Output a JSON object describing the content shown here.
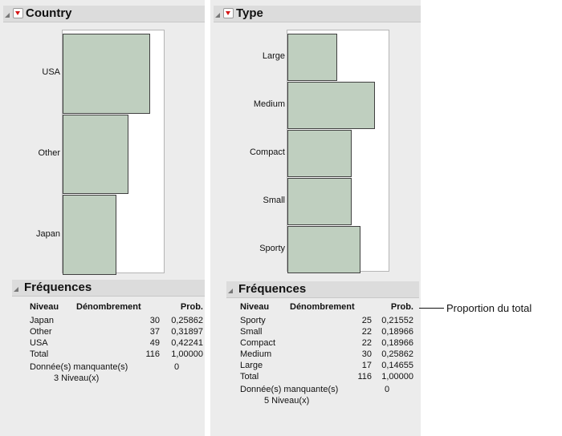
{
  "country": {
    "title": "Country",
    "frequencies_title": "Fréquences",
    "headers": [
      "Niveau",
      "Dénombrement",
      "Prob."
    ],
    "rows": [
      {
        "level": "Japan",
        "count": "30",
        "prob": "0,25862"
      },
      {
        "level": "Other",
        "count": "37",
        "prob": "0,31897"
      },
      {
        "level": "USA",
        "count": "49",
        "prob": "0,42241"
      },
      {
        "level": "Total",
        "count": "116",
        "prob": "1,00000"
      }
    ],
    "missing_label": "Donnée(s) manquante(s)",
    "missing_value": "0",
    "levels_label": "3  Niveau(x)"
  },
  "type": {
    "title": "Type",
    "frequencies_title": "Fréquences",
    "headers": [
      "Niveau",
      "Dénombrement",
      "Prob."
    ],
    "rows": [
      {
        "level": "Sporty",
        "count": "25",
        "prob": "0,21552"
      },
      {
        "level": "Small",
        "count": "22",
        "prob": "0,18966"
      },
      {
        "level": "Compact",
        "count": "22",
        "prob": "0,18966"
      },
      {
        "level": "Medium",
        "count": "30",
        "prob": "0,25862"
      },
      {
        "level": "Large",
        "count": "17",
        "prob": "0,14655"
      },
      {
        "level": "Total",
        "count": "116",
        "prob": "1,00000"
      }
    ],
    "missing_label": "Donnée(s) manquante(s)",
    "missing_value": "0",
    "levels_label": "5  Niveau(x)"
  },
  "callout": "Proportion du total",
  "chart_data": [
    {
      "type": "bar",
      "orientation": "horizontal",
      "categories": [
        "USA",
        "Other",
        "Japan"
      ],
      "values": [
        49,
        37,
        30
      ],
      "title": "Country"
    },
    {
      "type": "bar",
      "orientation": "horizontal",
      "categories": [
        "Large",
        "Medium",
        "Compact",
        "Small",
        "Sporty"
      ],
      "values": [
        17,
        30,
        22,
        22,
        25
      ],
      "title": "Type"
    }
  ],
  "colors": {
    "bar_fill": "#bfcfbf",
    "bar_stroke": "#404040",
    "panel_bg": "#ececec",
    "header_bg": "#dcdcdc",
    "menu_arrow": "#d41515"
  }
}
